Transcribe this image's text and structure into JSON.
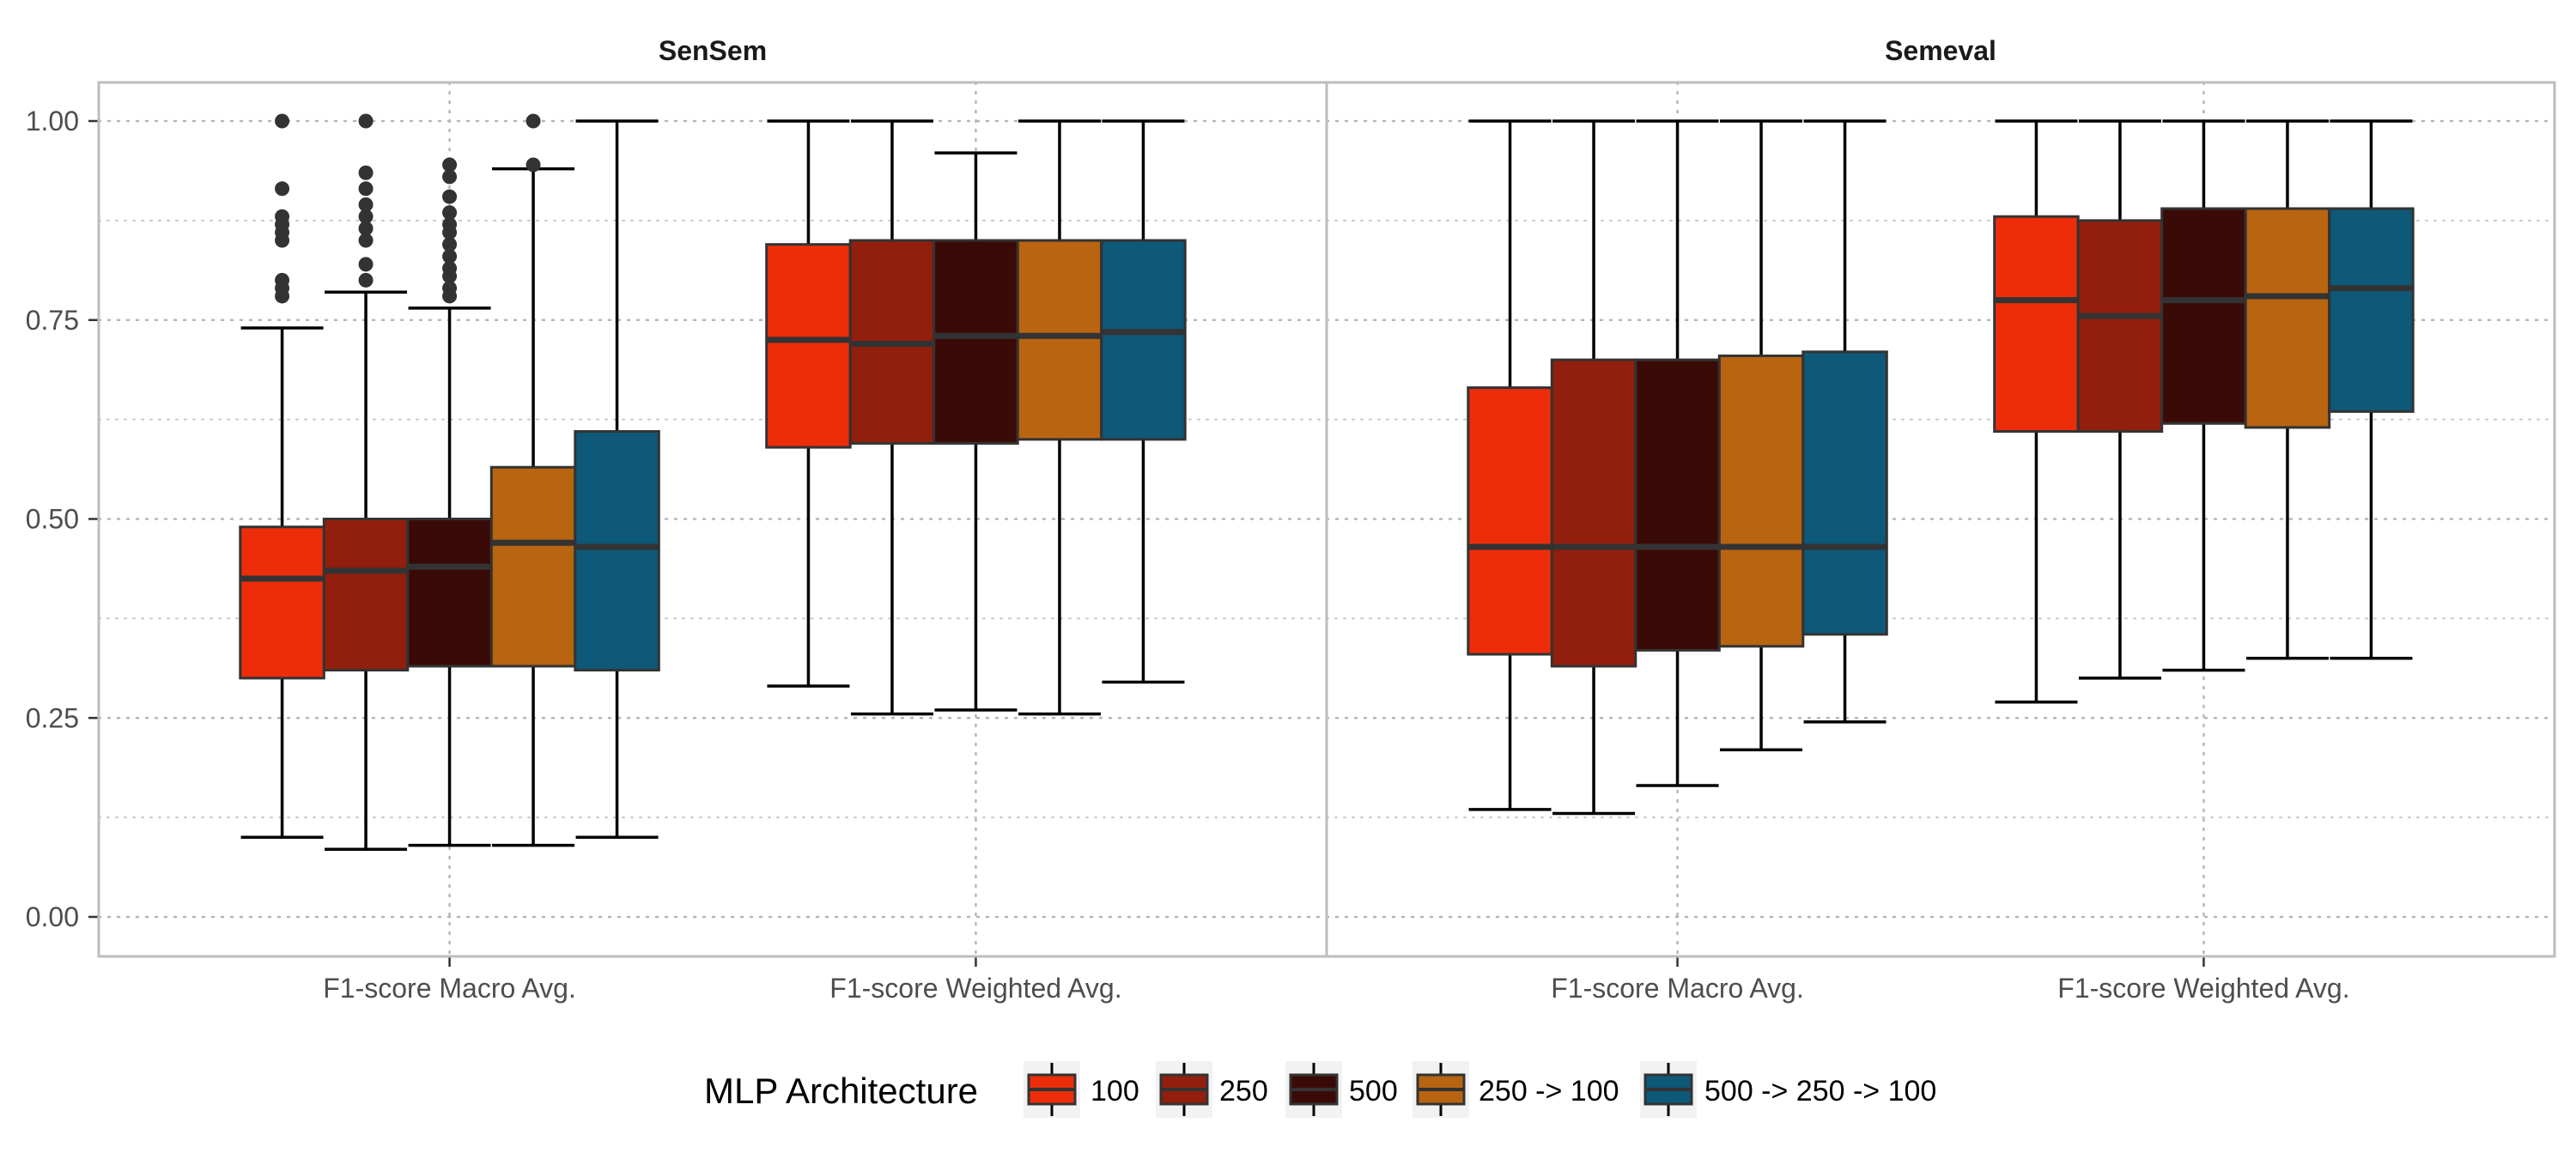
{
  "chart_data": {
    "type": "boxplot",
    "ylim": [
      0,
      1.05
    ],
    "y_ticks": [
      "0.00",
      "0.25",
      "0.50",
      "0.75",
      "1.00"
    ],
    "grid": true,
    "legend_placement": "bottom",
    "legend": {
      "title": "MLP Architecture",
      "entries": [
        {
          "label": "100",
          "color": "#ED2D0A"
        },
        {
          "label": "250",
          "color": "#921E0D"
        },
        {
          "label": "500",
          "color": "#3A0A07"
        },
        {
          "label": "250 -> 100",
          "color": "#B86410"
        },
        {
          "label": "500 -> 250 -> 100",
          "color": "#0E5878"
        }
      ]
    },
    "panels": [
      {
        "title": "SenSem",
        "categories": [
          "F1-score Macro Avg.",
          "F1-score Weighted Avg."
        ],
        "groups": [
          {
            "category": "F1-score Macro Avg.",
            "boxes": [
              {
                "series": "100",
                "whisker_low": 0.1,
                "q1": 0.3,
                "median": 0.425,
                "q3": 0.49,
                "whisker_high": 0.74,
                "outliers": [
                  0.78,
                  0.79,
                  0.8,
                  0.85,
                  0.86,
                  0.87,
                  0.88,
                  0.915,
                  1.0
                ]
              },
              {
                "series": "250",
                "whisker_low": 0.085,
                "q1": 0.31,
                "median": 0.435,
                "q3": 0.5,
                "whisker_high": 0.785,
                "outliers": [
                  0.8,
                  0.82,
                  0.85,
                  0.865,
                  0.88,
                  0.895,
                  0.915,
                  0.935,
                  1.0
                ]
              },
              {
                "series": "500",
                "whisker_low": 0.09,
                "q1": 0.315,
                "median": 0.44,
                "q3": 0.5,
                "whisker_high": 0.765,
                "outliers": [
                  0.78,
                  0.79,
                  0.805,
                  0.815,
                  0.83,
                  0.845,
                  0.86,
                  0.87,
                  0.885,
                  0.905,
                  0.93,
                  0.945
                ]
              },
              {
                "series": "250 -> 100",
                "whisker_low": 0.09,
                "q1": 0.315,
                "median": 0.47,
                "q3": 0.565,
                "whisker_high": 0.94,
                "outliers": [
                  0.945,
                  1.0
                ]
              },
              {
                "series": "500 -> 250 -> 100",
                "whisker_low": 0.1,
                "q1": 0.31,
                "median": 0.465,
                "q3": 0.61,
                "whisker_high": 1.0,
                "outliers": []
              }
            ]
          },
          {
            "category": "F1-score Weighted Avg.",
            "boxes": [
              {
                "series": "100",
                "whisker_low": 0.29,
                "q1": 0.59,
                "median": 0.725,
                "q3": 0.845,
                "whisker_high": 1.0,
                "outliers": []
              },
              {
                "series": "250",
                "whisker_low": 0.255,
                "q1": 0.595,
                "median": 0.72,
                "q3": 0.85,
                "whisker_high": 1.0,
                "outliers": []
              },
              {
                "series": "500",
                "whisker_low": 0.26,
                "q1": 0.595,
                "median": 0.73,
                "q3": 0.85,
                "whisker_high": 0.96,
                "outliers": []
              },
              {
                "series": "250 -> 100",
                "whisker_low": 0.255,
                "q1": 0.6,
                "median": 0.73,
                "q3": 0.85,
                "whisker_high": 1.0,
                "outliers": []
              },
              {
                "series": "500 -> 250 -> 100",
                "whisker_low": 0.295,
                "q1": 0.6,
                "median": 0.735,
                "q3": 0.85,
                "whisker_high": 1.0,
                "outliers": []
              }
            ]
          }
        ]
      },
      {
        "title": "Semeval",
        "categories": [
          "F1-score Macro Avg.",
          "F1-score Weighted Avg."
        ],
        "groups": [
          {
            "category": "F1-score Macro Avg.",
            "boxes": [
              {
                "series": "100",
                "whisker_low": 0.135,
                "q1": 0.33,
                "median": 0.465,
                "q3": 0.665,
                "whisker_high": 1.0,
                "outliers": []
              },
              {
                "series": "250",
                "whisker_low": 0.13,
                "q1": 0.315,
                "median": 0.465,
                "q3": 0.7,
                "whisker_high": 1.0,
                "outliers": []
              },
              {
                "series": "500",
                "whisker_low": 0.165,
                "q1": 0.335,
                "median": 0.465,
                "q3": 0.7,
                "whisker_high": 1.0,
                "outliers": []
              },
              {
                "series": "250 -> 100",
                "whisker_low": 0.21,
                "q1": 0.34,
                "median": 0.465,
                "q3": 0.705,
                "whisker_high": 1.0,
                "outliers": []
              },
              {
                "series": "500 -> 250 -> 100",
                "whisker_low": 0.245,
                "q1": 0.355,
                "median": 0.465,
                "q3": 0.71,
                "whisker_high": 1.0,
                "outliers": []
              }
            ]
          },
          {
            "category": "F1-score Weighted Avg.",
            "boxes": [
              {
                "series": "100",
                "whisker_low": 0.27,
                "q1": 0.61,
                "median": 0.775,
                "q3": 0.88,
                "whisker_high": 1.0,
                "outliers": []
              },
              {
                "series": "250",
                "whisker_low": 0.3,
                "q1": 0.61,
                "median": 0.755,
                "q3": 0.875,
                "whisker_high": 1.0,
                "outliers": []
              },
              {
                "series": "500",
                "whisker_low": 0.31,
                "q1": 0.62,
                "median": 0.775,
                "q3": 0.89,
                "whisker_high": 1.0,
                "outliers": []
              },
              {
                "series": "250 -> 100",
                "whisker_low": 0.325,
                "q1": 0.615,
                "median": 0.78,
                "q3": 0.89,
                "whisker_high": 1.0,
                "outliers": []
              },
              {
                "series": "500 -> 250 -> 100",
                "whisker_low": 0.325,
                "q1": 0.635,
                "median": 0.79,
                "q3": 0.89,
                "whisker_high": 1.0,
                "outliers": []
              }
            ]
          }
        ]
      }
    ]
  }
}
